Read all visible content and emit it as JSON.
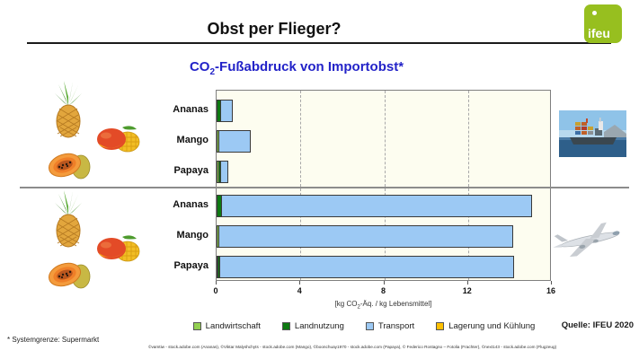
{
  "header": {
    "title": "Obst per Flieger?",
    "logo_text": "ifeu"
  },
  "subtitle": {
    "prefix": "CO",
    "subscript": "2",
    "suffix": "-Fußabdruck von Importobst*"
  },
  "chart_data": {
    "type": "bar",
    "orientation": "horizontal-stacked",
    "title": "CO2-Fußabdruck von Importobst*",
    "xlabel": "[kg CO₂-Äq. / kg Lebensmittel]",
    "xlabel_parts": {
      "prefix": "[kg CO",
      "sub": "2",
      "suffix": "-Äq. / kg Lebensmittel]"
    },
    "xlim": [
      0,
      16
    ],
    "xticks": [
      0,
      4,
      8,
      12,
      16
    ],
    "grid": "dashed-vertical",
    "series": [
      "Landwirtschaft",
      "Landnutzung",
      "Transport",
      "Lagerung und Kühlung"
    ],
    "series_colors": [
      "#92D050",
      "#0E7A12",
      "#9CC9F4",
      "#FFC000"
    ],
    "groups": [
      {
        "transport_mode": "Schiff (Frachter)",
        "rows": [
          {
            "category": "Ananas",
            "values": [
              0,
              0.2,
              0.6,
              0
            ],
            "total": 0.8
          },
          {
            "category": "Mango",
            "values": [
              0.15,
              0,
              1.55,
              0
            ],
            "total": 1.7
          },
          {
            "category": "Papaya",
            "values": [
              0.15,
              0.15,
              0.4,
              0
            ],
            "total": 0.7
          }
        ]
      },
      {
        "transport_mode": "Flugzeug",
        "rows": [
          {
            "category": "Ananas",
            "values": [
              0,
              0.25,
              14.85,
              0
            ],
            "total": 15.1
          },
          {
            "category": "Mango",
            "values": [
              0.15,
              0,
              14.05,
              0
            ],
            "total": 14.2
          },
          {
            "category": "Papaya",
            "values": [
              0.1,
              0.15,
              14.05,
              0
            ],
            "total": 14.3
          }
        ]
      }
    ]
  },
  "legend": {
    "items": [
      {
        "label": "Landwirtschaft",
        "color": "#92D050"
      },
      {
        "label": "Landnutzung",
        "color": "#0E7A12"
      },
      {
        "label": "Transport",
        "color": "#9CC9F4"
      },
      {
        "label": "Lagerung und Kühlung",
        "color": "#FFC000"
      }
    ]
  },
  "source": "Quelle: IFEU 2020",
  "footnote": "* Systemgrenze: Supermarkt",
  "credits": "©vamtiw - stock.adobe.com (Ananas), ©Viktar Malyshchyts - stock.adobe.com (Mango), ©boonchuay1970 - stock.adobe.com (Papaya), © Federico Rostagno – Fotolia (Frachter), ©next143 - stock.adobe.com (Flugzeug)",
  "colors": {
    "subtitle_blue": "#2323C8",
    "logo_green": "#97BF1F",
    "plot_background": "#FDFDF0"
  }
}
